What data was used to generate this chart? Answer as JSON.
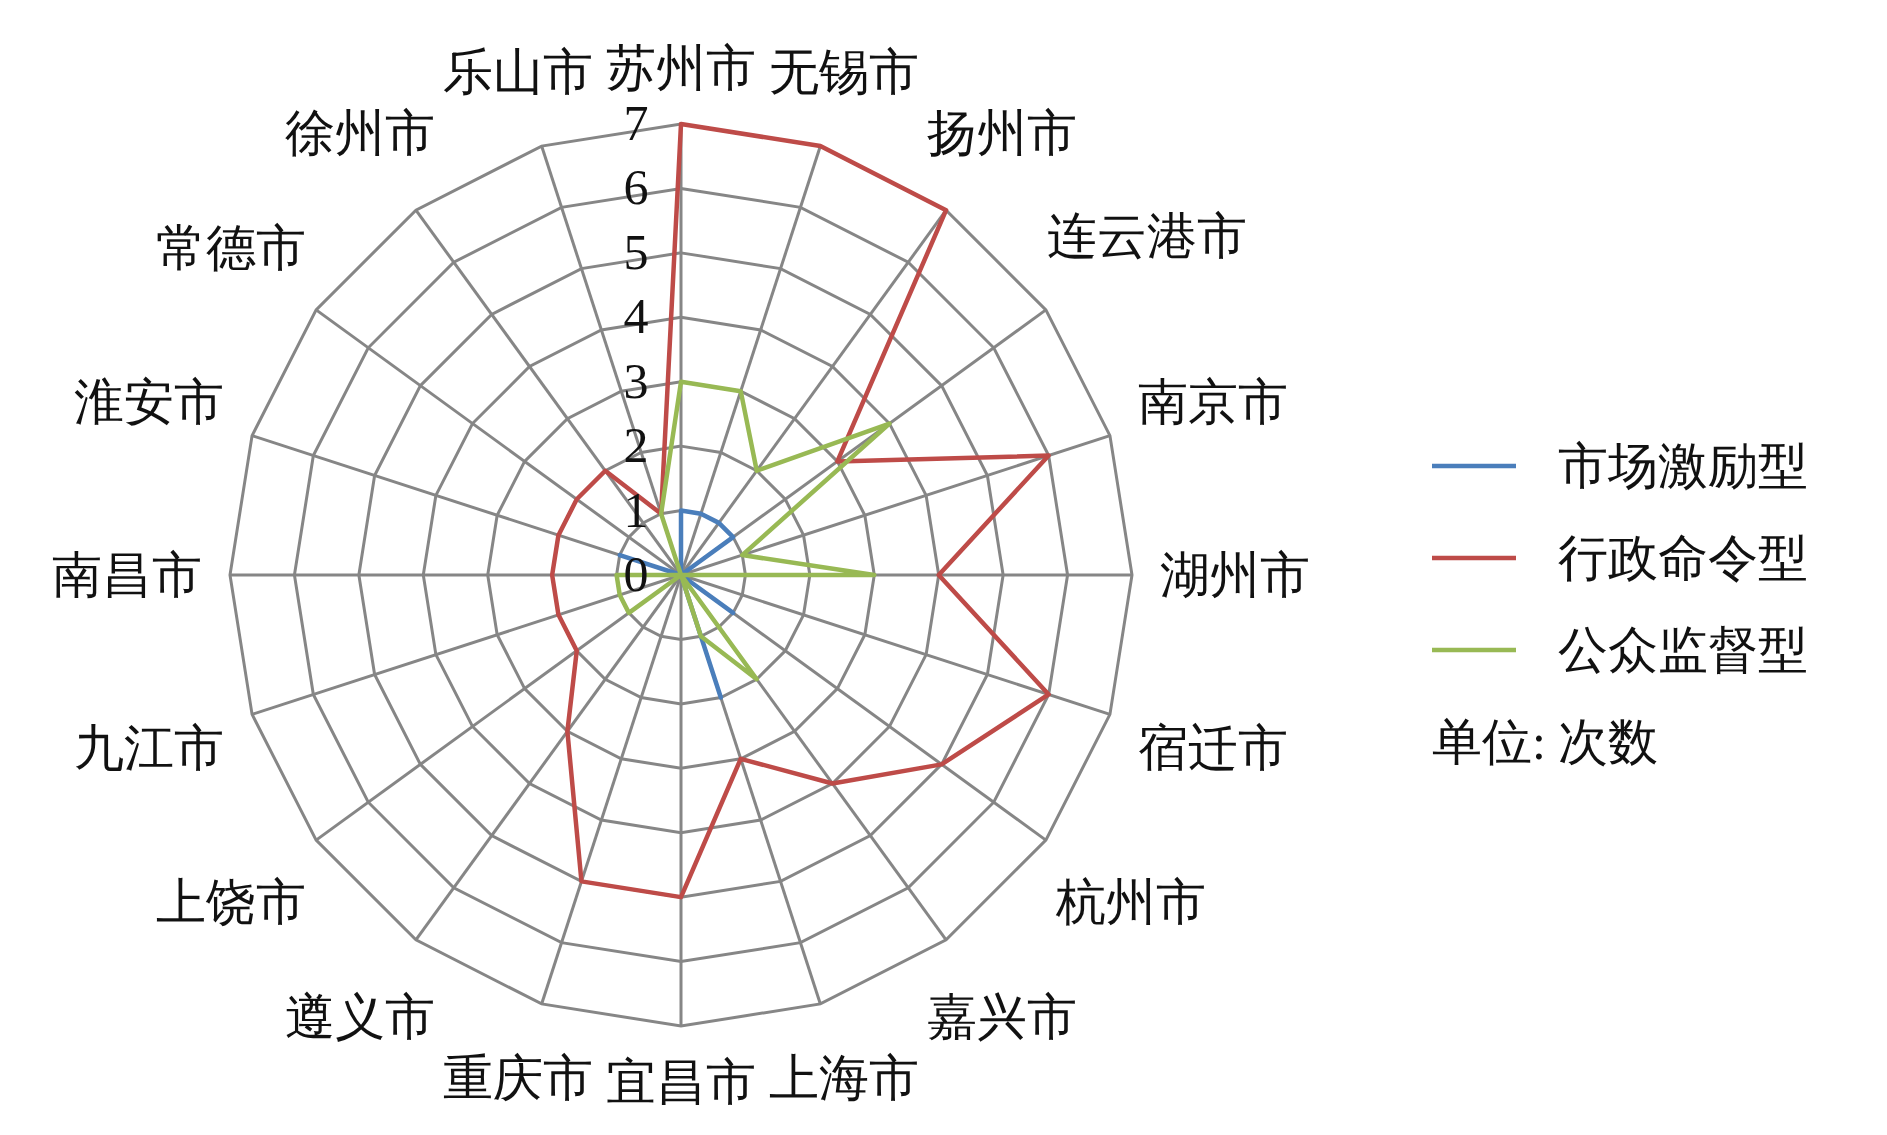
{
  "chart_data": {
    "type": "radar",
    "categories": [
      "苏州市",
      "无锡市",
      "扬州市",
      "连云港市",
      "南京市",
      "湖州市",
      "宿迁市",
      "杭州市",
      "嘉兴市",
      "上海市",
      "宜昌市",
      "重庆市",
      "遵义市",
      "上饶市",
      "九江市",
      "南昌市",
      "淮安市",
      "常德市",
      "徐州市",
      "乐山市"
    ],
    "series": [
      {
        "name": "市场激励型",
        "color": "#4a7ebb",
        "values": [
          1,
          1,
          1,
          1,
          0,
          0,
          0,
          1,
          0,
          2,
          0,
          0,
          0,
          0,
          0,
          0,
          1,
          0,
          0,
          0
        ]
      },
      {
        "name": "行政命令型",
        "color": "#be4b48",
        "values": [
          7,
          7,
          7,
          3,
          6,
          4,
          6,
          5,
          4,
          3,
          5,
          5,
          3,
          2,
          2,
          2,
          2,
          2,
          2,
          1
        ]
      },
      {
        "name": "公众监督型",
        "color": "#98b954",
        "values": [
          3,
          3,
          2,
          4,
          1,
          3,
          0,
          0,
          2,
          1,
          0,
          0,
          0,
          1,
          1,
          1,
          0,
          0,
          0,
          1
        ]
      }
    ],
    "ylim": [
      0,
      7
    ],
    "yticks": [
      0,
      1,
      2,
      3,
      4,
      5,
      6,
      7
    ],
    "grid": true,
    "legend": "right",
    "annotations": [
      "单位: 次数"
    ]
  }
}
